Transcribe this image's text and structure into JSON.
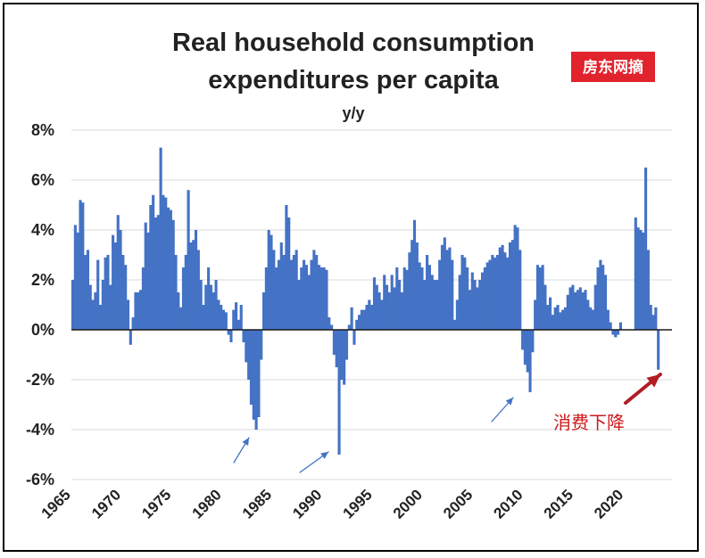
{
  "chart_data": {
    "type": "bar",
    "title_lines": [
      "Real household consumption",
      "expenditures per capita"
    ],
    "subtitle": "y/y",
    "y_unit": "%",
    "ylim": [
      -6,
      8
    ],
    "y_ticks": [
      8,
      6,
      4,
      2,
      0,
      -2,
      -4,
      -6
    ],
    "y_tick_labels": [
      "8%",
      "6%",
      "4%",
      "2%",
      "0%",
      "-2%",
      "-4%",
      "-6%"
    ],
    "xlim": [
      1965,
      2024.75
    ],
    "x_ticks": [
      1965,
      1970,
      1975,
      1980,
      1985,
      1990,
      1995,
      2000,
      2005,
      2010,
      2015,
      2020
    ],
    "x_tick_labels": [
      "1965",
      "1970",
      "1975",
      "1980",
      "1985",
      "1990",
      "1995",
      "2000",
      "2005",
      "2010",
      "2015",
      "2020"
    ],
    "grid": true,
    "legend": "none",
    "bar_color": "#4472c4",
    "series": [
      {
        "start": 1965,
        "step": 0.25,
        "values": [
          2.0,
          4.2,
          3.9,
          5.2,
          5.1,
          3.0,
          3.2,
          1.8,
          1.2,
          1.5,
          2.8,
          1.0,
          2.0,
          2.9,
          3.0,
          1.8,
          3.8,
          3.5,
          4.6,
          4.0,
          3.0,
          2.6,
          1.2,
          -0.6,
          0.5,
          1.5,
          1.5,
          1.6,
          2.5,
          4.3,
          3.9,
          5.0,
          5.4,
          4.5,
          4.6,
          7.3,
          5.4,
          5.3,
          4.9,
          4.8,
          4.4,
          3.0,
          1.5,
          0.9,
          2.5,
          3.0,
          5.6,
          3.5,
          3.6,
          4.0,
          3.2,
          2.0,
          1.0,
          1.8,
          2.5,
          1.8,
          1.5,
          2.0,
          1.2,
          1.0,
          0.8,
          0.7,
          -0.2,
          -0.5,
          0.8,
          1.1,
          0.4,
          1.0,
          -0.5,
          -1.3,
          -2.0,
          -3.0,
          -3.6,
          -4.0,
          -3.5,
          -1.2,
          1.5,
          2.5,
          4.0,
          3.8,
          3.2,
          2.5,
          2.8,
          3.5,
          3.0,
          5.0,
          4.5,
          2.8,
          3.0,
          3.2,
          2.0,
          2.5,
          2.8,
          2.6,
          2.2,
          2.8,
          3.2,
          3.0,
          2.6,
          2.5,
          2.5,
          2.4,
          0.5,
          0.2,
          -1.0,
          -1.5,
          -5.0,
          -2.0,
          -2.2,
          -1.2,
          0.2,
          0.9,
          -0.6,
          0.4,
          0.6,
          0.8,
          0.8,
          1.0,
          1.2,
          1.0,
          2.1,
          1.8,
          1.5,
          1.2,
          2.2,
          1.8,
          1.5,
          2.2,
          1.7,
          2.5,
          2.0,
          1.5,
          2.5,
          2.4,
          3.1,
          3.6,
          4.4,
          3.5,
          2.7,
          2.5,
          2.0,
          3.0,
          2.6,
          2.2,
          2.0,
          2.0,
          2.8,
          3.4,
          3.7,
          3.2,
          3.3,
          2.8,
          0.4,
          1.2,
          2.2,
          3.0,
          2.9,
          2.5,
          1.6,
          2.3,
          2.0,
          1.7,
          2.0,
          2.3,
          2.5,
          2.7,
          2.8,
          3.0,
          2.9,
          3.0,
          3.3,
          3.4,
          3.1,
          2.9,
          3.5,
          3.6,
          4.2,
          4.1,
          3.2,
          -0.8,
          -1.4,
          -1.7,
          -2.5,
          -0.9,
          1.2,
          2.6,
          2.5,
          2.6,
          1.8,
          1.0,
          1.3,
          0.6,
          0.9,
          1.0,
          0.7,
          0.8,
          0.9,
          1.4,
          1.7,
          1.8,
          1.5,
          1.6,
          1.7,
          1.5,
          1.6,
          1.2,
          0.9,
          0.8,
          1.8,
          2.5,
          2.8,
          2.6,
          2.2,
          0.8,
          0.3,
          -0.2,
          -0.3,
          -0.2,
          0.3,
          0,
          0,
          0,
          0,
          0,
          4.5,
          4.1,
          4.0,
          3.9,
          6.5,
          3.2,
          1.0,
          0.6,
          0.9,
          -1.6
        ]
      }
    ],
    "annotations": {
      "note": "消费下降",
      "watermark": "房东网摘",
      "arrow_color": "#4472c4",
      "highlight_arrow_color": "#b01e24",
      "note_color": "#cc1a1a",
      "watermark_bg": "#e1232d"
    }
  }
}
